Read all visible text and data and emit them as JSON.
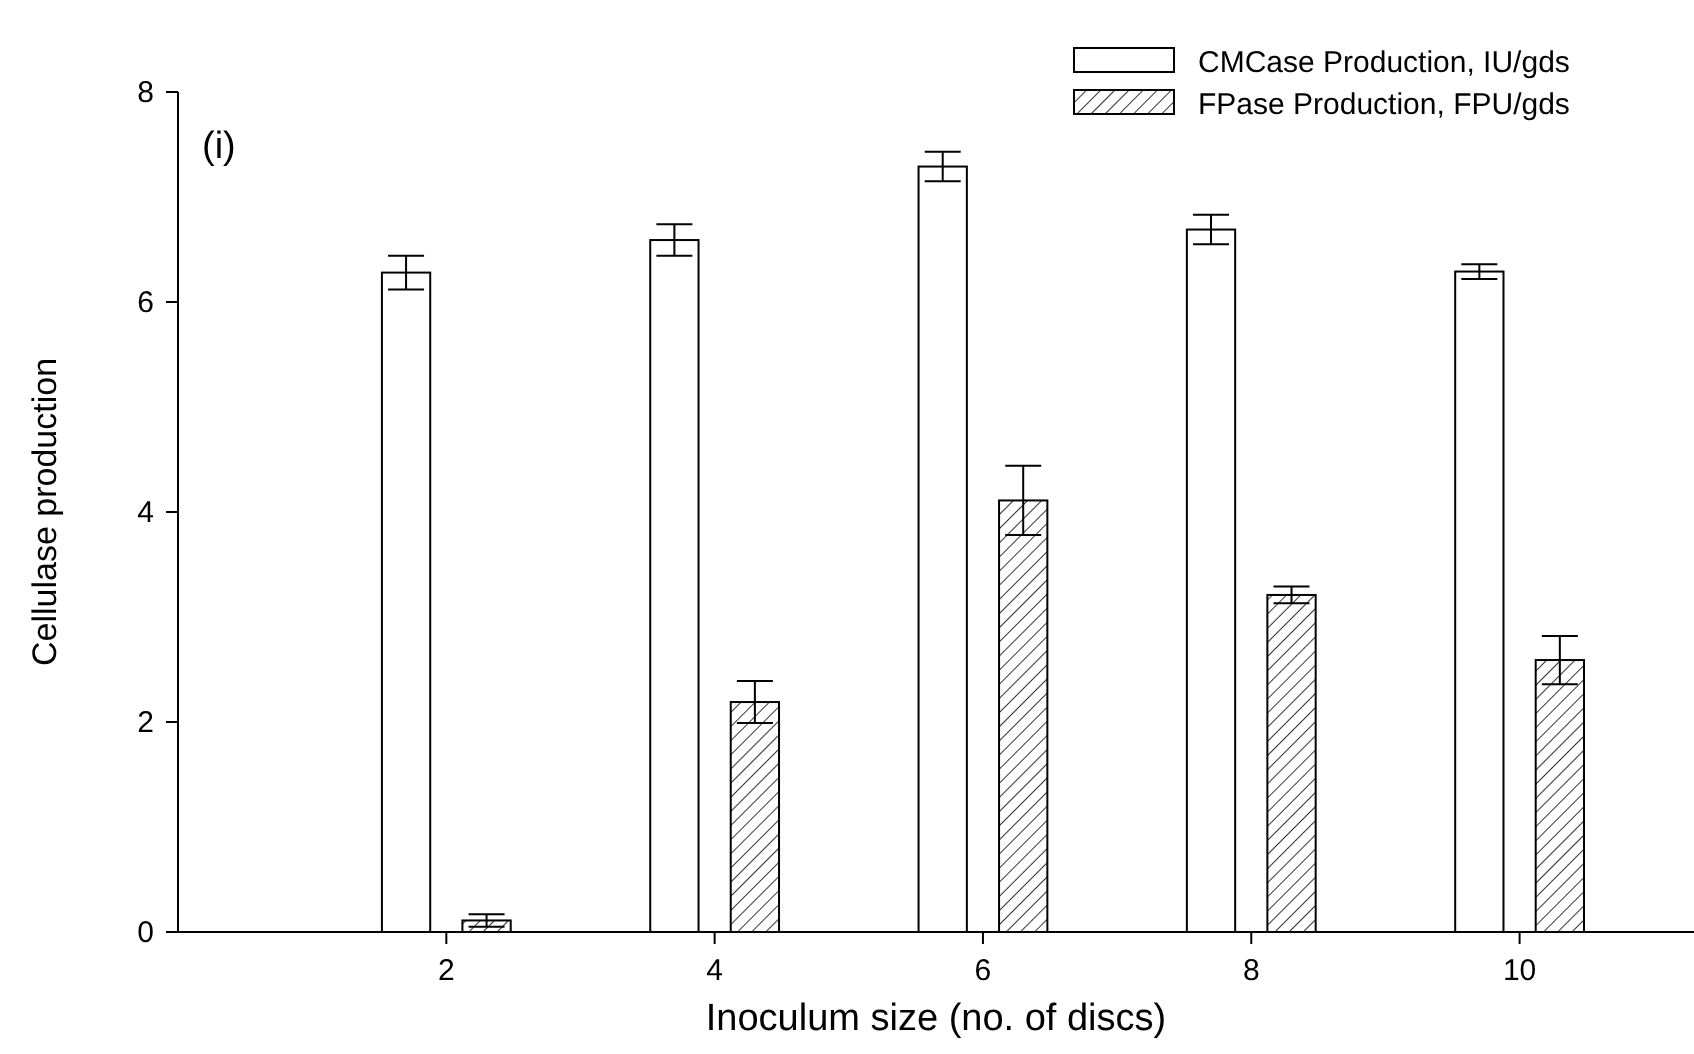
{
  "chart_data": {
    "type": "bar",
    "xlabel": "Inoculum size (no. of discs)",
    "ylabel": "Cellulase production",
    "annotations": [
      "(i)"
    ],
    "x": [
      2,
      4,
      6,
      8,
      10
    ],
    "xlim": [
      0,
      11.3
    ],
    "xticks": [
      2,
      4,
      6,
      8,
      10
    ],
    "ylim": [
      0,
      8
    ],
    "yticks": [
      0,
      2,
      4,
      6,
      8
    ],
    "grid": false,
    "legend": "top right",
    "series": [
      {
        "name": "CMCase Production, IU/gds",
        "color": "#ffffff",
        "values": [
          6.28,
          6.59,
          7.29,
          6.69,
          6.29
        ],
        "errors": [
          0.16,
          0.15,
          0.14,
          0.14,
          0.07
        ]
      },
      {
        "name": "FPase Production, FPU/gds",
        "color": "#000000",
        "values": [
          0.11,
          2.19,
          4.11,
          3.21,
          2.59
        ],
        "errors": [
          0.06,
          0.2,
          0.33,
          0.08,
          0.23
        ]
      }
    ]
  }
}
